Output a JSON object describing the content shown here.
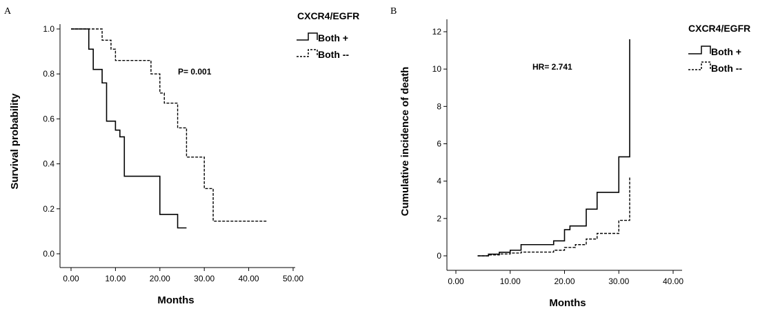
{
  "chart_data": [
    {
      "type": "line",
      "panel_label": "A",
      "xlabel": "Months",
      "ylabel": "Survival probability",
      "xlim": [
        0,
        50
      ],
      "ylim": [
        0,
        1
      ],
      "x_ticks": [
        "0.00",
        "10.00",
        "20.00",
        "30.00",
        "40.00",
        "50.00"
      ],
      "y_ticks": [
        "0.0",
        "0.2",
        "0.4",
        "0.6",
        "0.8",
        "1.0"
      ],
      "legend_title": "CXCR4/EGFR",
      "legend_position": "right",
      "annotation": "P= 0.001",
      "series": [
        {
          "name": "Both +",
          "style": "solid",
          "step": true,
          "x": [
            0,
            4,
            5,
            7,
            8,
            10,
            11,
            12,
            20,
            24,
            26
          ],
          "y": [
            1.0,
            0.91,
            0.82,
            0.76,
            0.59,
            0.55,
            0.52,
            0.345,
            0.175,
            0.115,
            0.115
          ]
        },
        {
          "name": "Both --",
          "style": "dashed",
          "step": true,
          "x": [
            0,
            7,
            9,
            10,
            12,
            18,
            20,
            21,
            24,
            26,
            30,
            32,
            44
          ],
          "y": [
            1.0,
            0.95,
            0.91,
            0.86,
            0.86,
            0.8,
            0.715,
            0.67,
            0.56,
            0.43,
            0.29,
            0.145,
            0.145
          ]
        }
      ]
    },
    {
      "type": "line",
      "panel_label": "B",
      "xlabel": "Months",
      "ylabel": "Cumulative incidence of death",
      "xlim": [
        0,
        40
      ],
      "ylim": [
        0,
        12
      ],
      "x_ticks": [
        "0.00",
        "10.00",
        "20.00",
        "30.00",
        "40.00"
      ],
      "y_ticks": [
        "0",
        "2",
        "4",
        "6",
        "8",
        "10",
        "12"
      ],
      "legend_title": "CXCR4/EGFR",
      "legend_position": "right",
      "annotation": "HR= 2.741",
      "series": [
        {
          "name": "Both +",
          "style": "solid",
          "step": true,
          "x": [
            4,
            6,
            8,
            10,
            12,
            18,
            20,
            21,
            24,
            26,
            30,
            32,
            32
          ],
          "y": [
            0.0,
            0.09,
            0.19,
            0.3,
            0.6,
            0.8,
            1.4,
            1.6,
            2.5,
            3.4,
            5.3,
            11.6,
            11.6
          ]
        },
        {
          "name": "Both --",
          "style": "dashed",
          "step": true,
          "x": [
            4,
            6,
            8,
            10,
            12,
            18,
            20,
            22,
            24,
            26,
            30,
            32,
            32
          ],
          "y": [
            0.0,
            0.05,
            0.1,
            0.15,
            0.2,
            0.3,
            0.45,
            0.6,
            0.9,
            1.2,
            1.9,
            4.2,
            4.2
          ]
        }
      ]
    }
  ]
}
